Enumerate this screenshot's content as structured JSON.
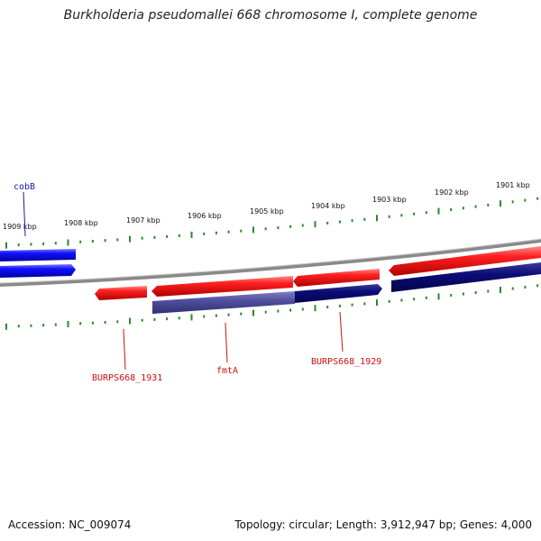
{
  "title": "Burkholderia pseudomallei 668 chromosome I, complete genome",
  "ticks": [
    "1909 kbp",
    "1908 kbp",
    "1907 kbp",
    "1906 kbp",
    "1905 kbp",
    "1904 kbp",
    "1903 kbp",
    "1902 kbp",
    "1901 kbp"
  ],
  "genes": {
    "cobB": "cobB",
    "burps1931": "BURPS668_1931",
    "fmtA": "fmtA",
    "burps1929": "BURPS668_1929"
  },
  "footer": {
    "accession": "Accession: NC_009074",
    "info": "Topology: circular; Length: 3,912,947 bp; Genes: 4,000"
  },
  "colors": {
    "forward_gene": "#ee1111",
    "reverse_gene": "#0000ee",
    "cds_dark": "#0a0a7a",
    "cds_faded": "#5050a0",
    "backbone": "#888888",
    "tick": "#2a8a2a",
    "gene_label_blue": "#1a1aa8",
    "gene_label_red": "#cc1111"
  }
}
